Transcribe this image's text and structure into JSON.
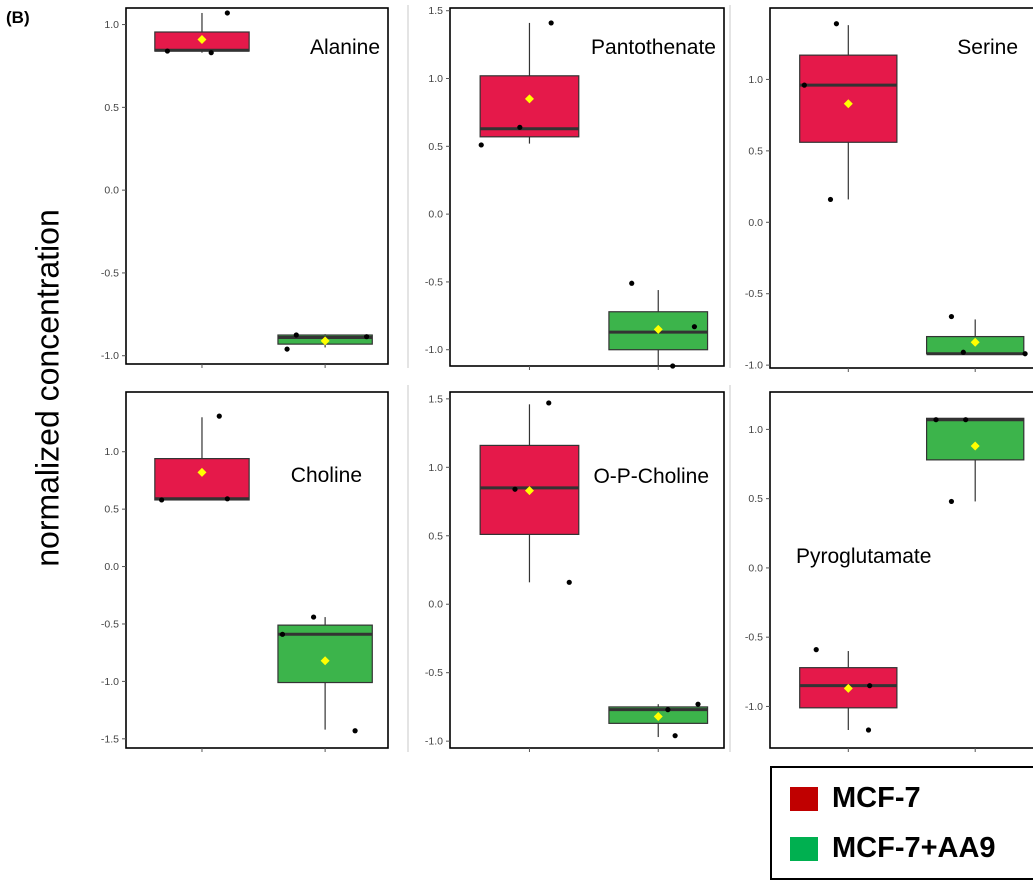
{
  "figure": {
    "panel_label": "(B)",
    "ylabel": "normalized concentration"
  },
  "colors": {
    "mcf7_box": "#e5194a",
    "aa9_box": "#3cb44b",
    "mean_marker": "#ffff00",
    "legend_mcf7": "#c00000",
    "legend_aa9": "#00b050"
  },
  "legend": {
    "placement": "bottom-right",
    "items": [
      {
        "label": "MCF-7",
        "color": "#c00000"
      },
      {
        "label": "MCF-7+AA9",
        "color": "#00b050"
      }
    ]
  },
  "chart_data": [
    {
      "type": "box",
      "title": "Alanine",
      "ylim": [
        -1.05,
        1.1
      ],
      "yticks": [
        1.0,
        0.5,
        0.0,
        -0.5,
        -1.0
      ],
      "tick_labels": [
        "1.0",
        "0.5",
        "0.0",
        "-0.5",
        "-1.0"
      ],
      "groups": [
        {
          "q1": 0.84,
          "median": 0.845,
          "q3": 0.955,
          "wlo": 0.83,
          "whi": 1.07,
          "mean": 0.91,
          "points": [
            [
              -0.3,
              0.84
            ],
            [
              0.08,
              0.83
            ],
            [
              0.22,
              1.07
            ]
          ]
        },
        {
          "q1": -0.93,
          "median": -0.89,
          "q3": -0.875,
          "wlo": -0.95,
          "whi": -0.87,
          "mean": -0.91,
          "points": [
            [
              -0.33,
              -0.96
            ],
            [
              -0.25,
              -0.875
            ],
            [
              0.36,
              -0.885
            ]
          ]
        }
      ]
    },
    {
      "type": "box",
      "title": "Pantothenate",
      "ylim": [
        -1.12,
        1.52
      ],
      "yticks": [
        1.5,
        1.0,
        0.5,
        0.0,
        -0.5,
        -1.0
      ],
      "tick_labels": [
        "1.5",
        "1.0",
        "0.5",
        "0.0",
        "-0.5",
        "-1.0"
      ],
      "groups": [
        {
          "q1": 0.57,
          "median": 0.63,
          "q3": 1.02,
          "wlo": 0.52,
          "whi": 1.41,
          "mean": 0.85,
          "points": [
            [
              -0.4,
              0.51
            ],
            [
              -0.08,
              0.64
            ],
            [
              0.18,
              1.41
            ]
          ]
        },
        {
          "q1": -1.0,
          "median": -0.87,
          "q3": -0.72,
          "wlo": -1.12,
          "whi": -0.56,
          "mean": -0.85,
          "points": [
            [
              -0.22,
              -0.51
            ],
            [
              0.12,
              -1.12
            ],
            [
              0.3,
              -0.83
            ]
          ]
        }
      ]
    },
    {
      "type": "box",
      "title": "Serine",
      "ylim": [
        -1.02,
        1.5
      ],
      "yticks": [
        1.0,
        0.5,
        0.0,
        -0.5,
        -1.0
      ],
      "tick_labels": [
        "1.0",
        "0.5",
        "0.0",
        "-0.5",
        "-1.0"
      ],
      "groups": [
        {
          "q1": 0.56,
          "median": 0.96,
          "q3": 1.17,
          "wlo": 0.16,
          "whi": 1.38,
          "mean": 0.83,
          "points": [
            [
              -0.37,
              0.96
            ],
            [
              -0.15,
              0.16
            ],
            [
              -0.1,
              1.39
            ]
          ]
        },
        {
          "q1": -0.92,
          "median": -0.92,
          "q3": -0.8,
          "wlo": -0.92,
          "whi": -0.68,
          "mean": -0.84,
          "points": [
            [
              -0.2,
              -0.66
            ],
            [
              -0.1,
              -0.91
            ],
            [
              0.42,
              -0.92
            ]
          ]
        }
      ]
    },
    {
      "type": "box",
      "title": "Choline",
      "ylim": [
        -1.58,
        1.52
      ],
      "yticks": [
        1.0,
        0.5,
        0.0,
        -0.5,
        -1.0,
        -1.5
      ],
      "tick_labels": [
        "1.0",
        "0.5",
        "0.0",
        "-0.5",
        "-1.0",
        "-1.5"
      ],
      "groups": [
        {
          "q1": 0.58,
          "median": 0.59,
          "q3": 0.94,
          "wlo": 0.58,
          "whi": 1.3,
          "mean": 0.82,
          "points": [
            [
              -0.35,
              0.58
            ],
            [
              0.15,
              1.31
            ],
            [
              0.22,
              0.59
            ]
          ]
        },
        {
          "q1": -1.01,
          "median": -0.59,
          "q3": -0.51,
          "wlo": -1.42,
          "whi": -0.44,
          "mean": -0.82,
          "points": [
            [
              -0.37,
              -0.59
            ],
            [
              -0.1,
              -0.44
            ],
            [
              0.26,
              -1.43
            ]
          ]
        }
      ]
    },
    {
      "type": "box",
      "title": "O-P-Choline",
      "ylim": [
        -1.05,
        1.55
      ],
      "yticks": [
        1.5,
        1.0,
        0.5,
        0.0,
        -0.5,
        -1.0
      ],
      "tick_labels": [
        "1.5",
        "1.0",
        "0.5",
        "0.0",
        "-0.5",
        "-1.0"
      ],
      "groups": [
        {
          "q1": 0.51,
          "median": 0.85,
          "q3": 1.16,
          "wlo": 0.16,
          "whi": 1.46,
          "mean": 0.83,
          "points": [
            [
              -0.12,
              0.84
            ],
            [
              0.16,
              1.47
            ],
            [
              0.33,
              0.16
            ]
          ]
        },
        {
          "q1": -0.87,
          "median": -0.77,
          "q3": -0.75,
          "wlo": -0.97,
          "whi": -0.73,
          "mean": -0.82,
          "points": [
            [
              0.08,
              -0.77
            ],
            [
              0.14,
              -0.96
            ],
            [
              0.33,
              -0.73
            ]
          ]
        }
      ]
    },
    {
      "type": "box",
      "title": "Pyroglutamate",
      "ylim": [
        -1.3,
        1.27
      ],
      "yticks": [
        1.0,
        0.5,
        0.0,
        -0.5,
        -1.0
      ],
      "tick_labels": [
        "1.0",
        "0.5",
        "0.0",
        "-0.5",
        "-1.0"
      ],
      "groups": [
        {
          "q1": -1.01,
          "median": -0.85,
          "q3": -0.72,
          "wlo": -1.17,
          "whi": -0.6,
          "mean": -0.87,
          "points": [
            [
              -0.27,
              -0.59
            ],
            [
              0.17,
              -1.17
            ],
            [
              0.18,
              -0.85
            ]
          ]
        },
        {
          "q1": 0.78,
          "median": 1.07,
          "q3": 1.08,
          "wlo": 0.48,
          "whi": 1.08,
          "mean": 0.88,
          "points": [
            [
              -0.33,
              1.07
            ],
            [
              -0.2,
              0.48
            ],
            [
              -0.08,
              1.07
            ]
          ]
        }
      ]
    }
  ]
}
